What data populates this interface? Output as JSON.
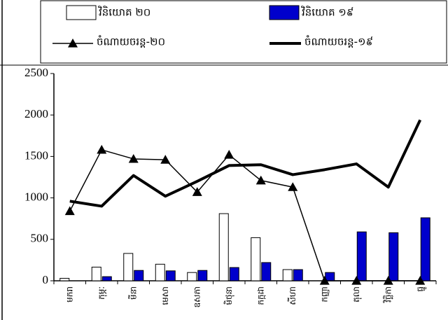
{
  "chart_data": {
    "type": "bar_line",
    "categories": [
      "មករា",
      "កុម្ភៈ",
      "មីនា",
      "មេសា",
      "ឧសភា",
      "មិថុនា",
      "កក្កដា",
      "សីហា",
      "កញ្ញា",
      "តុលា",
      "វិច្ឆិកា",
      "ធ្នូ"
    ],
    "series": [
      {
        "name": "វិនិយោគ ២០",
        "kind": "bar",
        "color": "#ffffff",
        "values": [
          30,
          165,
          330,
          200,
          100,
          810,
          520,
          135,
          null,
          null,
          null,
          null
        ]
      },
      {
        "name": "វិនិយោគ ១៩",
        "kind": "bar",
        "color": "#0000cc",
        "values": [
          0,
          50,
          125,
          120,
          125,
          160,
          220,
          135,
          100,
          590,
          580,
          760
        ]
      },
      {
        "name": "ចំណាយចរន្ត-២០",
        "kind": "line",
        "color": "#000000",
        "marker": "triangle",
        "values": [
          840,
          1580,
          1470,
          1460,
          1070,
          1520,
          1210,
          1130,
          0,
          0,
          0,
          0
        ]
      },
      {
        "name": "ចំណាយចរន្ត-១៩",
        "kind": "line",
        "color": "#000000",
        "marker": "none",
        "values": [
          960,
          900,
          1270,
          1020,
          1200,
          1390,
          1400,
          1280,
          1340,
          1410,
          1130,
          1940
        ]
      }
    ],
    "ylim": [
      0,
      2500
    ],
    "yticks": [
      0,
      500,
      1000,
      1500,
      2000,
      2500
    ],
    "legend": "top"
  }
}
